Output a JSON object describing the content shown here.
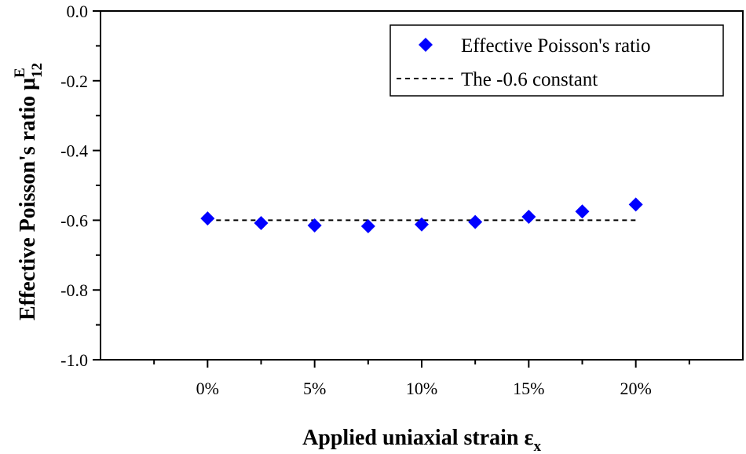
{
  "chart_data": {
    "type": "scatter",
    "xlabel": {
      "main": "Applied uniaxial strain ε",
      "sub": "x"
    },
    "ylabel": {
      "main": "Effective Poisson's ratio μ",
      "sub": "12",
      "sup": "E"
    },
    "xlim": [
      -5,
      25
    ],
    "ylim": [
      -1.0,
      0.0
    ],
    "x_ticks": [
      0,
      5,
      10,
      15,
      20
    ],
    "x_tick_labels": [
      "0%",
      "5%",
      "10%",
      "15%",
      "20%"
    ],
    "y_ticks": [
      0.0,
      -0.2,
      -0.4,
      -0.6,
      -0.8,
      -1.0
    ],
    "y_tick_labels": [
      "0.0",
      "-0.2",
      "-0.4",
      "-0.6",
      "-0.8",
      "-1.0"
    ],
    "series": [
      {
        "name": "Effective Poisson's ratio",
        "marker": "diamond",
        "color": "#0000ff",
        "x": [
          0,
          2.5,
          5,
          7.5,
          10,
          12.5,
          15,
          17.5,
          20
        ],
        "y": [
          -0.595,
          -0.608,
          -0.615,
          -0.617,
          -0.612,
          -0.605,
          -0.59,
          -0.575,
          -0.555
        ]
      },
      {
        "name": "The -0.6 constant",
        "style": "dashed",
        "color": "#000000",
        "x": [
          0,
          20
        ],
        "y": [
          -0.6,
          -0.6
        ]
      }
    ],
    "legend_position": "top-right",
    "grid": false
  }
}
